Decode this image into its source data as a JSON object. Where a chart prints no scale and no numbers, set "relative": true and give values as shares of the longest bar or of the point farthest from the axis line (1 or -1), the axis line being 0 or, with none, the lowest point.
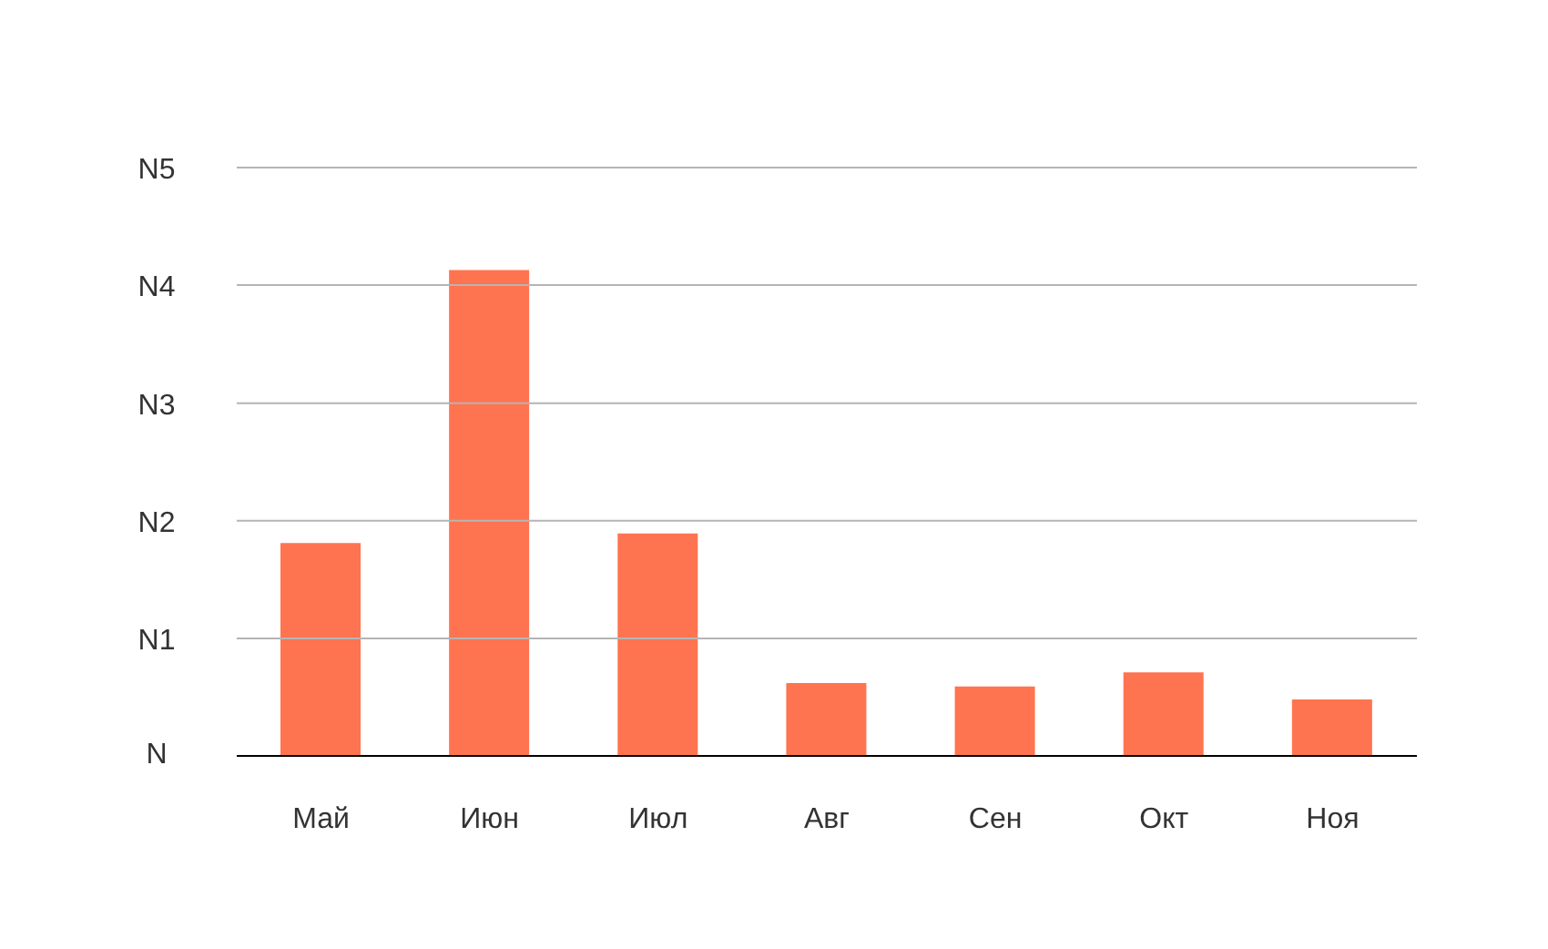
{
  "chart_data": {
    "type": "bar",
    "relative": true,
    "categories": [
      "Май",
      "Июн",
      "Июл",
      "Авг",
      "Сен",
      "Окт",
      "Ноя"
    ],
    "values": [
      0.438,
      1,
      0.458,
      0.15,
      0.143,
      0.172,
      0.116
    ],
    "color": "#ff7450",
    "annotations": [
      "N"
    ],
    "ref_lines": [
      {
        "axis": "y",
        "value": 0.242,
        "label": "N1",
        "color": "#b5b5b5"
      },
      {
        "axis": "y",
        "value": 0.484,
        "label": "N2",
        "color": "#b5b5b5"
      },
      {
        "axis": "y",
        "value": 0.726,
        "label": "N3",
        "color": "#b5b5b5"
      },
      {
        "axis": "y",
        "value": 0.969,
        "label": "N4",
        "color": "#b5b5b5"
      },
      {
        "axis": "y",
        "value": 1.211,
        "label": "N5",
        "color": "#b5b5b5"
      }
    ]
  }
}
